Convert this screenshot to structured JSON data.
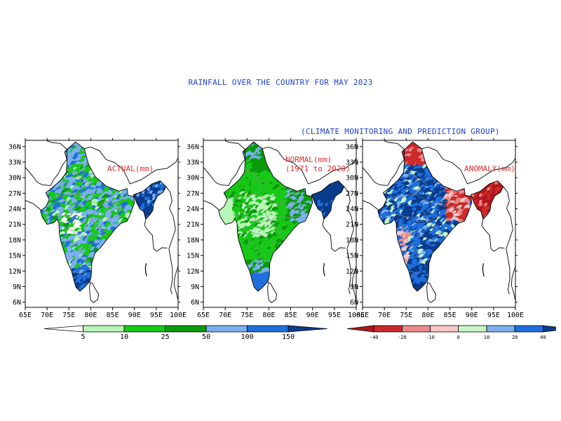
{
  "title": "RAINFALL OVER THE COUNTRY FOR MAY 2023",
  "subtitle": "(CLIMATE MONITORING AND PREDICTION GROUP)",
  "axes": {
    "lon_labels": [
      "65E",
      "70E",
      "75E",
      "80E",
      "85E",
      "90E",
      "95E",
      "100E"
    ],
    "lat_labels": [
      "36N",
      "33N",
      "30N",
      "27N",
      "24N",
      "21N",
      "18N",
      "15N",
      "12N",
      "9N",
      "6N"
    ]
  },
  "panels": [
    {
      "label": "ACTUAL(mm)",
      "label2": "",
      "palette": "rain",
      "pattern": "actual"
    },
    {
      "label": "NORMAL(mm)",
      "label2": "(1971 to 2020)",
      "palette": "rain",
      "pattern": "normal"
    },
    {
      "label": "ANOMALY(mm)",
      "label2": "",
      "palette": "anom",
      "pattern": "anomaly"
    }
  ],
  "colorbars": {
    "rainfall": {
      "ticks": [
        "5",
        "10",
        "25",
        "50",
        "100",
        "150"
      ],
      "colors": [
        "#ffffff",
        "#b8f5b8",
        "#18c818",
        "#0a9a0a",
        "#7ab0ee",
        "#1f6fdc",
        "#0a3c8c"
      ]
    },
    "anomaly": {
      "ticks": [
        "-40",
        "-20",
        "-10",
        "0",
        "10",
        "20",
        "40"
      ],
      "colors": [
        "#b0161c",
        "#cc2a2a",
        "#ea8a8a",
        "#f6c8c8",
        "#c8f5c8",
        "#7ab0ee",
        "#1f6fdc",
        "#0a3c8c"
      ]
    }
  }
}
